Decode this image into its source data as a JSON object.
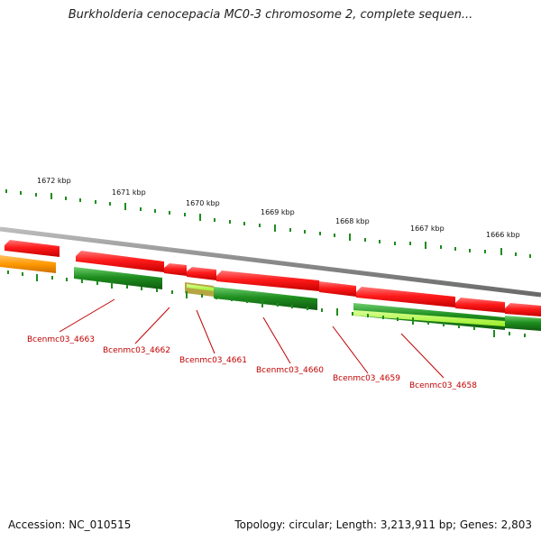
{
  "title": "Burkholderia cenocepacia MC0-3 chromosome 2, complete sequen...",
  "kbp_labels": [
    "1672 kbp",
    "1671 kbp",
    "1670 kbp",
    "1669 kbp",
    "1668 kbp",
    "1667 kbp",
    "1666 kbp"
  ],
  "genes": [
    {
      "label": "Bcenmc03_4663"
    },
    {
      "label": "Bcenmc03_4662"
    },
    {
      "label": "Bcenmc03_4661"
    },
    {
      "label": "Bcenmc03_4660"
    },
    {
      "label": "Bcenmc03_4659"
    },
    {
      "label": "Bcenmc03_4658"
    }
  ],
  "colors": {
    "forward": "#ff1a1a",
    "reverse": "#1f8f1f",
    "orange": "#ff9900",
    "lime": "#aaff33",
    "olive": "#b5a642",
    "backbone": "#8a8a8a",
    "tick": "#1e8c1e",
    "label": "#c00000"
  },
  "footer": {
    "accession": "Accession: NC_010515",
    "stats": "Topology: circular; Length: 3,213,911 bp; Genes: 2,803"
  }
}
